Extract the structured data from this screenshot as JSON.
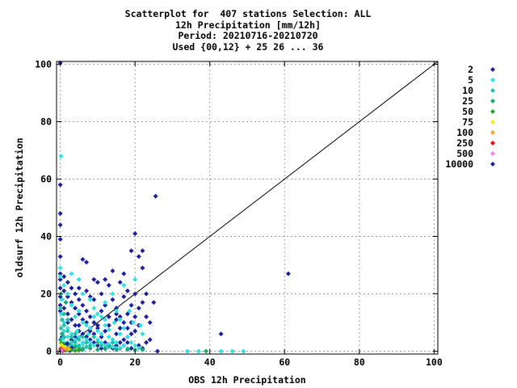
{
  "chart_data": {
    "type": "scatter",
    "title_lines": [
      "Scatterplot for  407 stations Selection: ALL",
      "12h Precipitation [mm/12h]",
      "Period: 20210716-20210720",
      "Used {00,12} + 25 26 ... 36"
    ],
    "xlabel": "OBS 12h Precipitation",
    "ylabel": "oldsurf 12h Precipitation",
    "xlim": [
      -1,
      101
    ],
    "ylim": [
      -1,
      101
    ],
    "xticks": [
      0,
      20,
      40,
      60,
      80,
      100
    ],
    "yticks": [
      0,
      20,
      40,
      60,
      80,
      100
    ],
    "grid": true,
    "diagonal_line": true,
    "legend_position": "right",
    "series": [
      {
        "label": "2",
        "color": "#1f1f9e",
        "points": [
          [
            0.3,
            1.2
          ],
          [
            1.2,
            0.4
          ],
          [
            2.5,
            0.2
          ],
          [
            0.5,
            2.4
          ],
          [
            3.1,
            1.1
          ],
          [
            1.8,
            2.6
          ]
        ]
      },
      {
        "label": "5",
        "color": "#33e0e0",
        "points": [
          [
            0.2,
            68
          ],
          [
            0,
            29
          ],
          [
            0,
            26
          ],
          [
            1,
            23
          ],
          [
            2,
            20
          ],
          [
            3,
            16
          ],
          [
            5,
            14
          ],
          [
            4,
            12
          ],
          [
            6,
            10
          ],
          [
            7,
            9
          ],
          [
            8,
            8
          ],
          [
            9,
            12
          ],
          [
            10,
            7
          ],
          [
            11,
            6
          ],
          [
            12,
            9
          ],
          [
            13,
            5
          ],
          [
            14,
            4
          ],
          [
            15,
            3
          ],
          [
            16,
            6
          ],
          [
            3,
            6
          ],
          [
            4,
            4
          ],
          [
            5,
            5
          ],
          [
            6,
            3
          ],
          [
            2,
            8
          ],
          [
            1,
            10
          ],
          [
            0.5,
            18
          ],
          [
            0.3,
            13
          ],
          [
            1,
            7
          ],
          [
            2,
            5
          ],
          [
            3,
            3
          ],
          [
            4,
            2
          ],
          [
            5,
            1.5
          ],
          [
            6,
            2.5
          ],
          [
            7,
            4
          ],
          [
            8,
            3
          ],
          [
            9,
            2
          ],
          [
            10,
            4
          ],
          [
            11,
            3
          ],
          [
            12,
            2
          ],
          [
            13,
            2.5
          ],
          [
            14,
            1.5
          ],
          [
            15,
            1
          ],
          [
            16,
            1.2
          ],
          [
            17,
            2
          ],
          [
            18,
            1
          ],
          [
            19,
            3
          ],
          [
            20,
            2
          ],
          [
            21,
            1
          ],
          [
            18,
            5
          ],
          [
            17,
            8
          ],
          [
            16,
            11
          ],
          [
            15,
            14
          ],
          [
            17,
            23
          ],
          [
            20,
            25
          ],
          [
            14,
            20
          ],
          [
            12,
            17
          ],
          [
            34,
            0
          ],
          [
            37,
            0
          ],
          [
            43,
            0
          ],
          [
            46,
            0
          ],
          [
            49,
            0
          ],
          [
            5,
            25
          ],
          [
            3,
            27
          ],
          [
            8,
            18
          ],
          [
            6,
            20
          ],
          [
            9,
            15
          ],
          [
            10,
            13
          ],
          [
            11,
            12
          ],
          [
            12,
            11
          ],
          [
            1,
            3
          ],
          [
            2,
            2
          ],
          [
            0.8,
            4.5
          ],
          [
            4.5,
            7
          ],
          [
            7.5,
            6
          ],
          [
            13,
            7.5
          ],
          [
            14.5,
            10
          ],
          [
            18.5,
            14
          ],
          [
            19.5,
            10
          ],
          [
            21.5,
            9
          ],
          [
            22,
            6
          ]
        ]
      },
      {
        "label": "10",
        "color": "#20c0a8",
        "points": [
          [
            0,
            15
          ],
          [
            0.5,
            11
          ],
          [
            1,
            9
          ],
          [
            2,
            7
          ],
          [
            3,
            5
          ],
          [
            4,
            6
          ],
          [
            5,
            4
          ],
          [
            6,
            5
          ],
          [
            7,
            3
          ],
          [
            8,
            2
          ],
          [
            9,
            5
          ],
          [
            10,
            3
          ],
          [
            2,
            3
          ],
          [
            3,
            2
          ],
          [
            1,
            5
          ],
          [
            0.2,
            8
          ],
          [
            4,
            3
          ],
          [
            5,
            2
          ],
          [
            6,
            1
          ],
          [
            7,
            1.5
          ],
          [
            11,
            2
          ],
          [
            12,
            1
          ],
          [
            13,
            1.5
          ],
          [
            14,
            3
          ],
          [
            1,
            13
          ],
          [
            2,
            11
          ]
        ]
      },
      {
        "label": "25",
        "color": "#1aa878",
        "points": [
          [
            0,
            4
          ],
          [
            1,
            2.5
          ],
          [
            2,
            1.5
          ],
          [
            3,
            1
          ],
          [
            4,
            1.5
          ],
          [
            0.5,
            6
          ],
          [
            5,
            0.8
          ],
          [
            6,
            0.5
          ],
          [
            8,
            1
          ],
          [
            10,
            0.5
          ],
          [
            12,
            0.8
          ],
          [
            15,
            0.5
          ],
          [
            18,
            0.6
          ],
          [
            20,
            0.4
          ],
          [
            22,
            0.5
          ],
          [
            39,
            0
          ],
          [
            0.2,
            20
          ],
          [
            1.5,
            17
          ]
        ]
      },
      {
        "label": "50",
        "color": "#2aa02a",
        "points": [
          [
            0.5,
            0.5
          ],
          [
            1,
            1
          ],
          [
            1.5,
            0.3
          ],
          [
            2,
            0.6
          ],
          [
            3,
            0.4
          ],
          [
            4,
            0.2
          ],
          [
            5,
            0.3
          ],
          [
            0.3,
            2.8
          ],
          [
            0.7,
            1.8
          ]
        ]
      },
      {
        "label": "75",
        "color": "#f0f000",
        "points": [
          [
            0.6,
            1.8
          ],
          [
            1.4,
            1.3
          ],
          [
            2.2,
            0.8
          ],
          [
            0.3,
            2.1
          ]
        ]
      },
      {
        "label": "100",
        "color": "#ffa030",
        "points": [
          [
            0.4,
            1.2
          ],
          [
            1.0,
            0.5
          ],
          [
            1.9,
            0.9
          ],
          [
            0.2,
            0.4
          ]
        ]
      },
      {
        "label": "250",
        "color": "#e01010",
        "points": [
          [
            0.2,
            0.3
          ],
          [
            0.6,
            0.1
          ],
          [
            0.1,
            0.7
          ]
        ]
      },
      {
        "label": "500",
        "color": "#f080f0",
        "points": [
          [
            0.1,
            0.1
          ],
          [
            0.3,
            0.2
          ]
        ]
      },
      {
        "label": "10000",
        "color": "#1f1f9e",
        "points": [
          [
            0,
            100.5
          ],
          [
            0,
            58
          ],
          [
            0,
            48
          ],
          [
            0,
            44
          ],
          [
            0,
            39
          ],
          [
            0,
            33
          ],
          [
            0,
            27
          ],
          [
            0,
            25
          ],
          [
            0,
            22
          ],
          [
            0,
            19
          ],
          [
            0,
            16
          ],
          [
            0,
            14
          ],
          [
            1,
            26
          ],
          [
            1,
            21
          ],
          [
            2,
            19
          ],
          [
            3,
            17
          ],
          [
            4,
            15
          ],
          [
            5,
            13
          ],
          [
            5,
            22
          ],
          [
            6,
            32
          ],
          [
            7,
            31
          ],
          [
            7,
            21
          ],
          [
            8,
            19
          ],
          [
            9,
            18
          ],
          [
            9,
            25
          ],
          [
            10,
            24
          ],
          [
            10,
            9
          ],
          [
            11,
            20
          ],
          [
            11,
            14
          ],
          [
            12,
            16
          ],
          [
            12,
            25
          ],
          [
            13,
            12
          ],
          [
            13,
            23
          ],
          [
            14,
            18
          ],
          [
            14,
            28
          ],
          [
            15,
            15
          ],
          [
            15,
            11
          ],
          [
            16,
            24
          ],
          [
            16,
            8
          ],
          [
            17,
            19
          ],
          [
            17,
            27
          ],
          [
            18,
            21
          ],
          [
            18,
            13
          ],
          [
            19,
            35
          ],
          [
            19,
            16
          ],
          [
            20,
            41
          ],
          [
            20,
            20
          ],
          [
            21,
            33
          ],
          [
            21,
            9
          ],
          [
            22,
            35
          ],
          [
            22,
            29
          ],
          [
            23,
            12
          ],
          [
            24,
            10
          ],
          [
            25,
            17
          ],
          [
            25.5,
            54
          ],
          [
            26,
            0
          ],
          [
            43,
            6
          ],
          [
            61,
            27
          ],
          [
            16,
            8
          ],
          [
            15,
            6
          ],
          [
            14,
            4
          ],
          [
            13,
            9
          ],
          [
            12,
            7
          ],
          [
            11,
            5
          ],
          [
            10,
            8
          ],
          [
            9,
            10
          ],
          [
            8,
            12
          ],
          [
            7,
            14
          ],
          [
            6,
            16
          ],
          [
            5,
            18
          ],
          [
            4,
            20
          ],
          [
            3,
            22
          ],
          [
            2,
            24
          ],
          [
            1,
            15
          ],
          [
            2,
            13
          ],
          [
            3,
            11
          ],
          [
            4,
            9
          ],
          [
            5,
            7
          ],
          [
            6,
            6
          ],
          [
            7,
            5
          ],
          [
            8,
            4
          ],
          [
            9,
            3
          ],
          [
            10,
            2
          ],
          [
            11,
            1
          ],
          [
            12,
            3
          ],
          [
            13,
            2
          ],
          [
            14,
            1
          ],
          [
            15,
            2
          ],
          [
            16,
            3
          ],
          [
            17,
            4
          ],
          [
            18,
            5
          ],
          [
            19,
            6
          ],
          [
            20,
            7
          ],
          [
            21,
            2
          ],
          [
            22,
            1
          ],
          [
            23,
            3
          ],
          [
            24,
            4
          ],
          [
            3,
            4
          ],
          [
            4,
            5
          ],
          [
            5,
            9
          ],
          [
            6,
            11
          ],
          [
            7,
            10
          ],
          [
            8,
            7
          ],
          [
            9,
            6
          ],
          [
            2,
            10
          ],
          [
            1,
            7
          ],
          [
            0.5,
            5
          ],
          [
            19,
            10
          ],
          [
            20,
            12
          ],
          [
            21,
            15
          ],
          [
            22,
            17
          ],
          [
            23,
            20
          ],
          [
            18,
            8
          ],
          [
            17,
            10
          ],
          [
            16,
            12
          ],
          [
            15,
            13
          ],
          [
            18,
            3
          ],
          [
            17,
            2
          ],
          [
            16,
            1
          ],
          [
            19,
            1
          ]
        ]
      }
    ],
    "legend": [
      "2",
      "5",
      "10",
      "25",
      "50",
      "75",
      "100",
      "250",
      "500",
      "10000"
    ]
  }
}
